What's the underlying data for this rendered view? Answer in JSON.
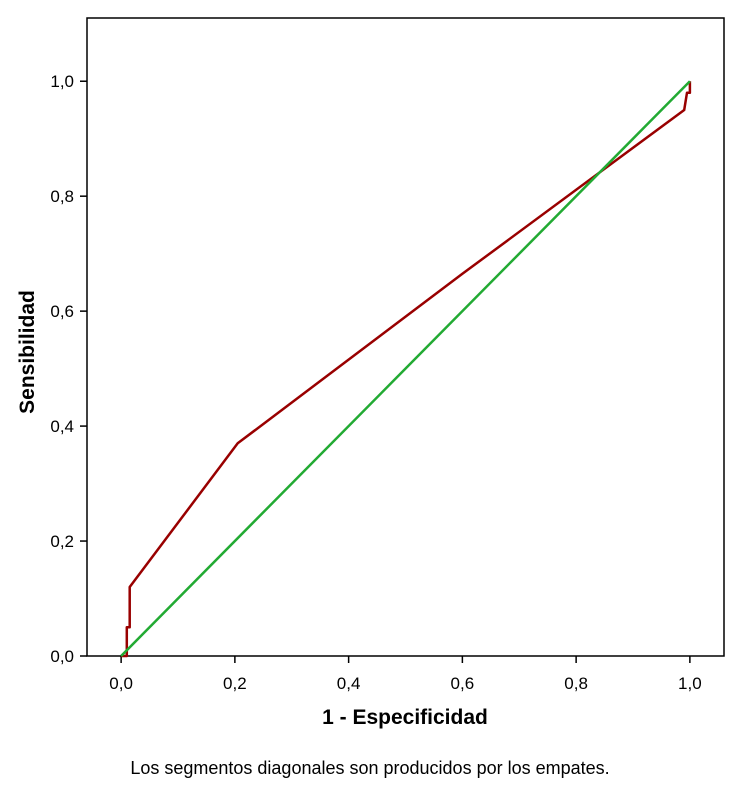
{
  "chart_data": {
    "type": "line",
    "xlabel": "1 - Especificidad",
    "ylabel": "Sensibilidad",
    "xlim": [
      -0.06,
      1.06
    ],
    "ylim": [
      0,
      1.11
    ],
    "x_ticks": [
      0.0,
      0.2,
      0.4,
      0.6,
      0.8,
      1.0
    ],
    "y_ticks": [
      0.0,
      0.2,
      0.4,
      0.6,
      0.8,
      1.0
    ],
    "x_tick_labels": [
      "0,0",
      "0,2",
      "0,4",
      "0,6",
      "0,8",
      "1,0"
    ],
    "y_tick_labels": [
      "0,0",
      "0,2",
      "0,4",
      "0,6",
      "0,8",
      "1,0"
    ],
    "grid": false,
    "legend": "none",
    "series": [
      {
        "color": "#990000",
        "points": [
          [
            0.0,
            0.0
          ],
          [
            0.01,
            0.0
          ],
          [
            0.01,
            0.05
          ],
          [
            0.015,
            0.05
          ],
          [
            0.015,
            0.12
          ],
          [
            0.205,
            0.37
          ],
          [
            0.6,
            0.665
          ],
          [
            0.99,
            0.95
          ],
          [
            0.995,
            0.98
          ],
          [
            1.0,
            0.98
          ],
          [
            1.0,
            1.0
          ]
        ]
      },
      {
        "color": "#22aa33",
        "points": [
          [
            0.0,
            0.0
          ],
          [
            1.0,
            1.0
          ]
        ]
      }
    ]
  },
  "footnote": "Los segmentos diagonales son producidos por los empates."
}
